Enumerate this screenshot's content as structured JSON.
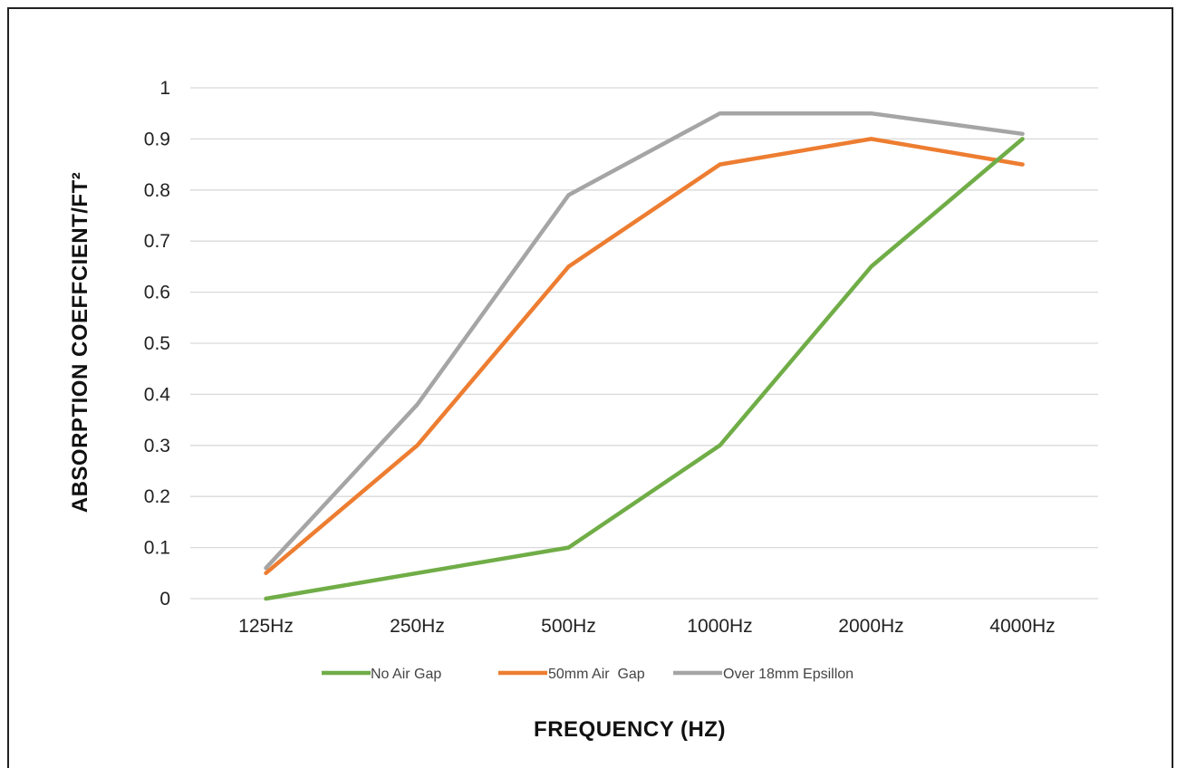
{
  "chart_data": {
    "type": "line",
    "categories": [
      "125Hz",
      "250Hz",
      "500Hz",
      "1000Hz",
      "2000Hz",
      "4000Hz"
    ],
    "series": [
      {
        "name": "No Air Gap",
        "color": "#70ad47",
        "values": [
          0,
          0.05,
          0.1,
          0.3,
          0.65,
          0.9
        ]
      },
      {
        "name": "50mm Air  Gap",
        "color": "#ed7d31",
        "values": [
          0.05,
          0.3,
          0.65,
          0.85,
          0.9,
          0.85
        ]
      },
      {
        "name": "Over 18mm Epsillon",
        "color": "#a5a5a5",
        "values": [
          0.06,
          0.38,
          0.79,
          0.95,
          0.95,
          0.91
        ]
      }
    ],
    "yticks": [
      "0",
      "0.1",
      "0.2",
      "0.3",
      "0.4",
      "0.5",
      "0.6",
      "0.7",
      "0.8",
      "0.9",
      "1"
    ],
    "ylim": [
      0,
      1
    ],
    "xlabel": "FREQUENCY (HZ)",
    "ylabel": "ABSORPTION COEFFCIENT/FT²",
    "grid": true,
    "legend_position": "bottom"
  }
}
